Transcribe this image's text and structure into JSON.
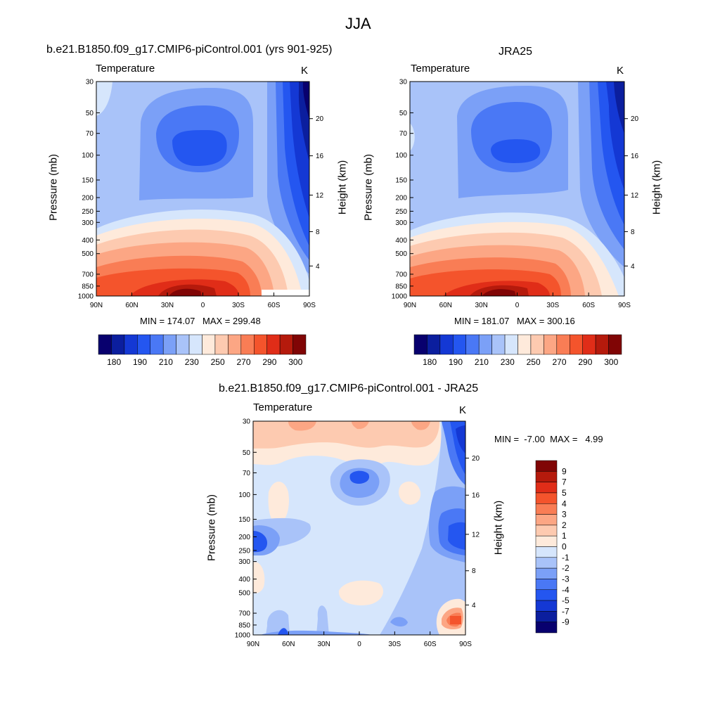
{
  "figure": {
    "title": "JJA"
  },
  "palette_colors": [
    "#08006e",
    "#0b1e9e",
    "#1438d4",
    "#2456f0",
    "#4a78f5",
    "#7ba0f7",
    "#a9c3f9",
    "#d6e6fc",
    "#feeadb",
    "#fdcab0",
    "#fca684",
    "#f97d55",
    "#f4542c",
    "#e02d18",
    "#b51a0c",
    "#800505"
  ],
  "chart_data": [
    {
      "type": "heatmap",
      "title": "b.e21.B1850.f09_g17.CMIP6-piControl.001 (yrs 901-925)",
      "subtitle": "Temperature",
      "units": "K",
      "xlabel": "",
      "ylabel": "Pressure (mb)",
      "ylabel_right": "Height (km)",
      "x_ticks": [
        "90N",
        "60N",
        "30N",
        "0",
        "30S",
        "60S",
        "90S"
      ],
      "y_ticks": [
        "30",
        "50",
        "70",
        "100",
        "150",
        "200",
        "250",
        "300",
        "400",
        "500",
        "700",
        "850",
        "1000"
      ],
      "y_right_ticks": [
        "20",
        "16",
        "12",
        "8",
        "4"
      ],
      "min_text": "MIN = 174.07",
      "max_text": "MAX = 299.48",
      "colorbar_ticks": [
        "180",
        "190",
        "210",
        "230",
        "250",
        "270",
        "290",
        "300"
      ],
      "min": 174.07,
      "max": 299.48
    },
    {
      "type": "heatmap",
      "title": "JRA25",
      "subtitle": "Temperature",
      "units": "K",
      "xlabel": "",
      "ylabel": "Pressure (mb)",
      "ylabel_right": "Height (km)",
      "x_ticks": [
        "90N",
        "60N",
        "30N",
        "0",
        "30S",
        "60S",
        "90S"
      ],
      "y_ticks": [
        "30",
        "50",
        "70",
        "100",
        "150",
        "200",
        "250",
        "300",
        "400",
        "500",
        "700",
        "850",
        "1000"
      ],
      "y_right_ticks": [
        "20",
        "16",
        "12",
        "8",
        "4"
      ],
      "min_text": "MIN = 181.07",
      "max_text": "MAX = 300.16",
      "colorbar_ticks": [
        "180",
        "190",
        "210",
        "230",
        "250",
        "270",
        "290",
        "300"
      ],
      "min": 181.07,
      "max": 300.16
    },
    {
      "type": "heatmap",
      "title": "b.e21.B1850.f09_g17.CMIP6-piControl.001 - JRA25",
      "subtitle": "Temperature",
      "units": "K",
      "xlabel": "",
      "ylabel": "Pressure (mb)",
      "ylabel_right": "Height (km)",
      "x_ticks": [
        "90N",
        "60N",
        "30N",
        "0",
        "30S",
        "60S",
        "90S"
      ],
      "y_ticks": [
        "30",
        "50",
        "70",
        "100",
        "150",
        "200",
        "250",
        "300",
        "400",
        "500",
        "700",
        "850",
        "1000"
      ],
      "y_right_ticks": [
        "20",
        "16",
        "12",
        "8",
        "4"
      ],
      "min_max_text": "MIN =  -7.00  MAX =   4.99",
      "colorbar_ticks": [
        "9",
        "7",
        "5",
        "4",
        "3",
        "2",
        "1",
        "0",
        "-1",
        "-2",
        "-3",
        "-4",
        "-5",
        "-7",
        "-9"
      ],
      "min": -7.0,
      "max": 4.99
    }
  ]
}
